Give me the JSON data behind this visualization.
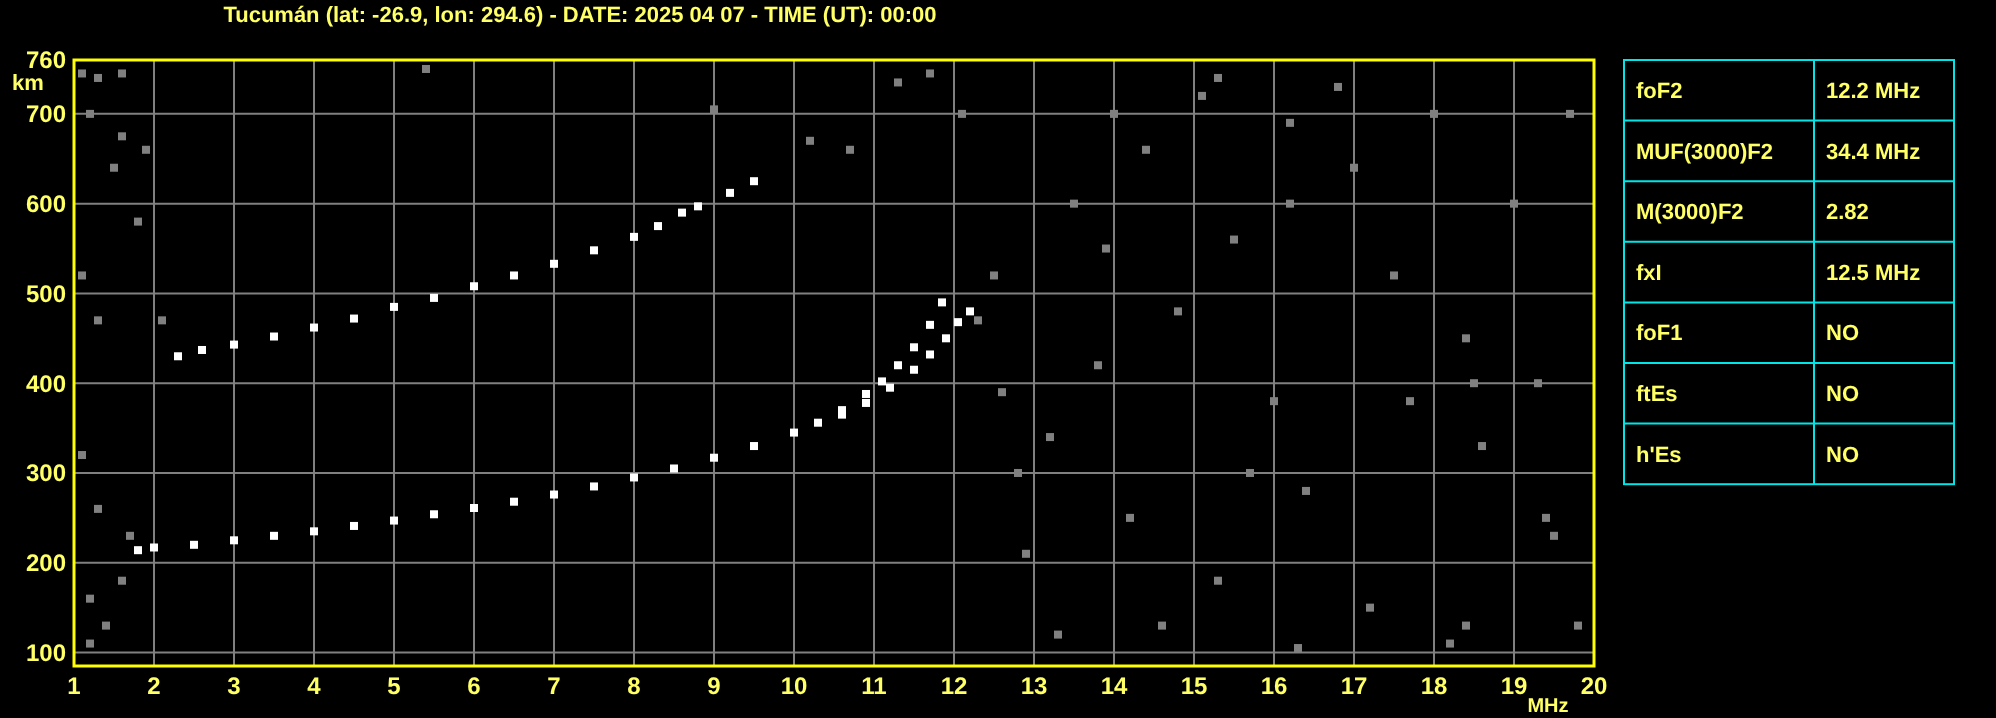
{
  "chart_data": [
    {
      "type": "scatter",
      "title": "Tucumán (lat: -26.9, lon: 294.6) - DATE: 2025 04 07 - TIME (UT): 00:00",
      "xlabel": "MHz",
      "ylabel": "km",
      "xlim": [
        1,
        20
      ],
      "ylim": [
        85,
        760
      ],
      "xticks": [
        1,
        2,
        3,
        4,
        5,
        6,
        7,
        8,
        9,
        10,
        11,
        12,
        13,
        14,
        15,
        16,
        17,
        18,
        19,
        20
      ],
      "yticks": [
        100,
        200,
        300,
        400,
        500,
        600,
        700,
        760
      ],
      "grid": true,
      "marker": "square",
      "series": [
        {
          "color": "#ffffff",
          "x": [
            1.8,
            2,
            2.5,
            3,
            3.5,
            4,
            4.5,
            5,
            5.5,
            6,
            6.5,
            7,
            7.5,
            8,
            8.5,
            9,
            9.5,
            10,
            10.3,
            10.6,
            10.9,
            11.1,
            11.3,
            11.5,
            11.7,
            11.85
          ],
          "values": [
            214,
            217,
            220,
            225,
            230,
            235,
            241,
            247,
            254,
            261,
            268,
            276,
            285,
            295,
            305,
            317,
            330,
            345,
            356,
            370,
            388,
            402,
            420,
            440,
            465,
            490
          ]
        },
        {
          "color": "#ffffff",
          "x": [
            10.6,
            10.9,
            11.2,
            11.5,
            11.7,
            11.9,
            12.05,
            12.2
          ],
          "values": [
            365,
            378,
            395,
            415,
            432,
            450,
            468,
            480
          ]
        },
        {
          "color": "#ffffff",
          "x": [
            2.3,
            2.6,
            3,
            3.5,
            4,
            4.5,
            5,
            5.5,
            6,
            6.5,
            7,
            7.5,
            8,
            8.3,
            8.6,
            8.8,
            9.2,
            9.5
          ],
          "values": [
            430,
            437,
            443,
            452,
            462,
            472,
            485,
            495,
            508,
            520,
            533,
            548,
            563,
            575,
            590,
            597,
            612,
            625
          ]
        },
        {
          "color": "#808080",
          "x": [
            1.1,
            1.3,
            1.6,
            1.2,
            1.6,
            1.9,
            1.5,
            1.8,
            1.1,
            1.3,
            1.1,
            1.3,
            1.7,
            1.6,
            1.2,
            1.4,
            1.2,
            2.1,
            5.4,
            9,
            11.3,
            11.7,
            12.1,
            10.2,
            10.7,
            12.5,
            12.3,
            12.6,
            12.8,
            13.2,
            12.9,
            13.5,
            14,
            14.4,
            15.1,
            15.5,
            14.8,
            13.8,
            14.2,
            15.3,
            16,
            16.4,
            17,
            17.5,
            17.2,
            18,
            18.4,
            18.6,
            19,
            19.3,
            19.5,
            19.8,
            16.8,
            18.2,
            14.6,
            13.3,
            15.7,
            17.7,
            16.2,
            13.9,
            19.7,
            15.3,
            16.2,
            18.5,
            19.4,
            16.3,
            18.4
          ],
          "values": [
            745,
            740,
            745,
            700,
            675,
            660,
            640,
            580,
            520,
            470,
            320,
            260,
            230,
            180,
            160,
            130,
            110,
            470,
            750,
            705,
            735,
            745,
            700,
            670,
            660,
            520,
            470,
            390,
            300,
            340,
            210,
            600,
            700,
            660,
            720,
            560,
            480,
            420,
            250,
            180,
            380,
            280,
            640,
            520,
            150,
            700,
            450,
            330,
            600,
            400,
            230,
            130,
            730,
            110,
            130,
            120,
            300,
            380,
            600,
            550,
            700,
            740,
            690,
            400,
            250,
            105,
            130
          ]
        }
      ]
    },
    {
      "type": "other",
      "categories": [
        "foF2",
        "MUF(3000)F2",
        "M(3000)F2",
        "fxI",
        "foF1",
        "ftEs",
        "h'Es"
      ],
      "value_labels": [
        "12.2 MHz",
        "34.4 MHz",
        "2.82",
        "12.5 MHz",
        "NO",
        "NO",
        "NO"
      ]
    }
  ]
}
